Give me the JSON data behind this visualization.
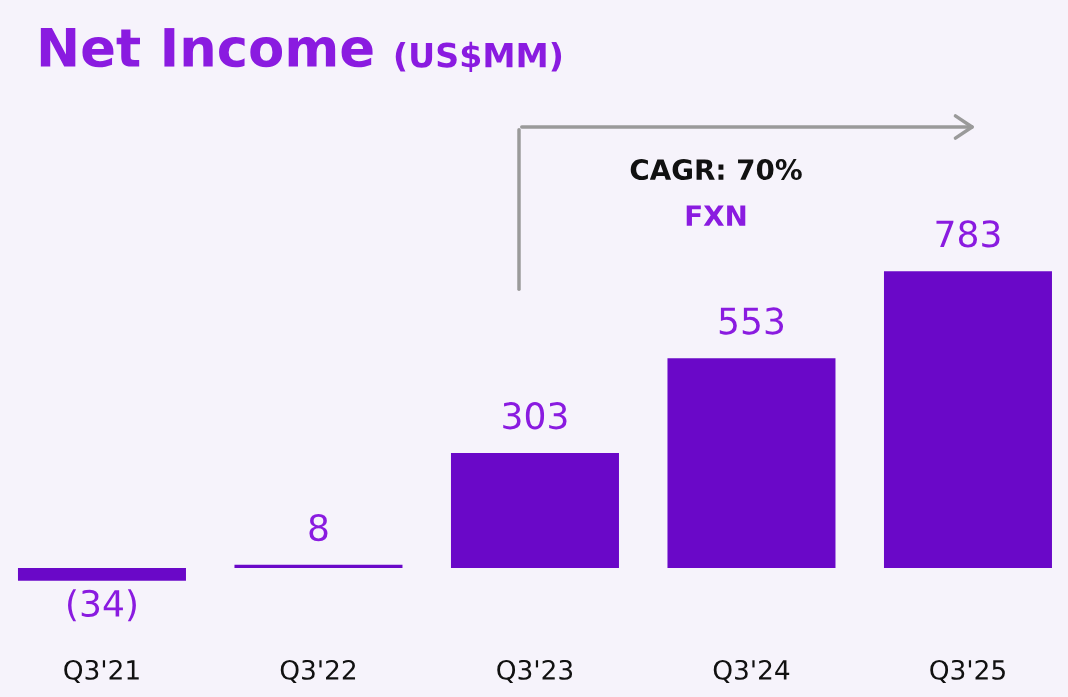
{
  "chart_data": {
    "type": "bar",
    "title": "Net Income",
    "subtitle": "(US$MM)",
    "categories": [
      "Q3'21",
      "Q3'22",
      "Q3'23",
      "Q3'24",
      "Q3'25"
    ],
    "values": [
      -34,
      8,
      303,
      553,
      783
    ],
    "value_labels": [
      "(34)",
      "8",
      "303",
      "553",
      "783"
    ],
    "color": "#6a08c8",
    "annotations": [
      "CAGR: 70%",
      "FXN"
    ],
    "grid": false,
    "legend": false
  }
}
